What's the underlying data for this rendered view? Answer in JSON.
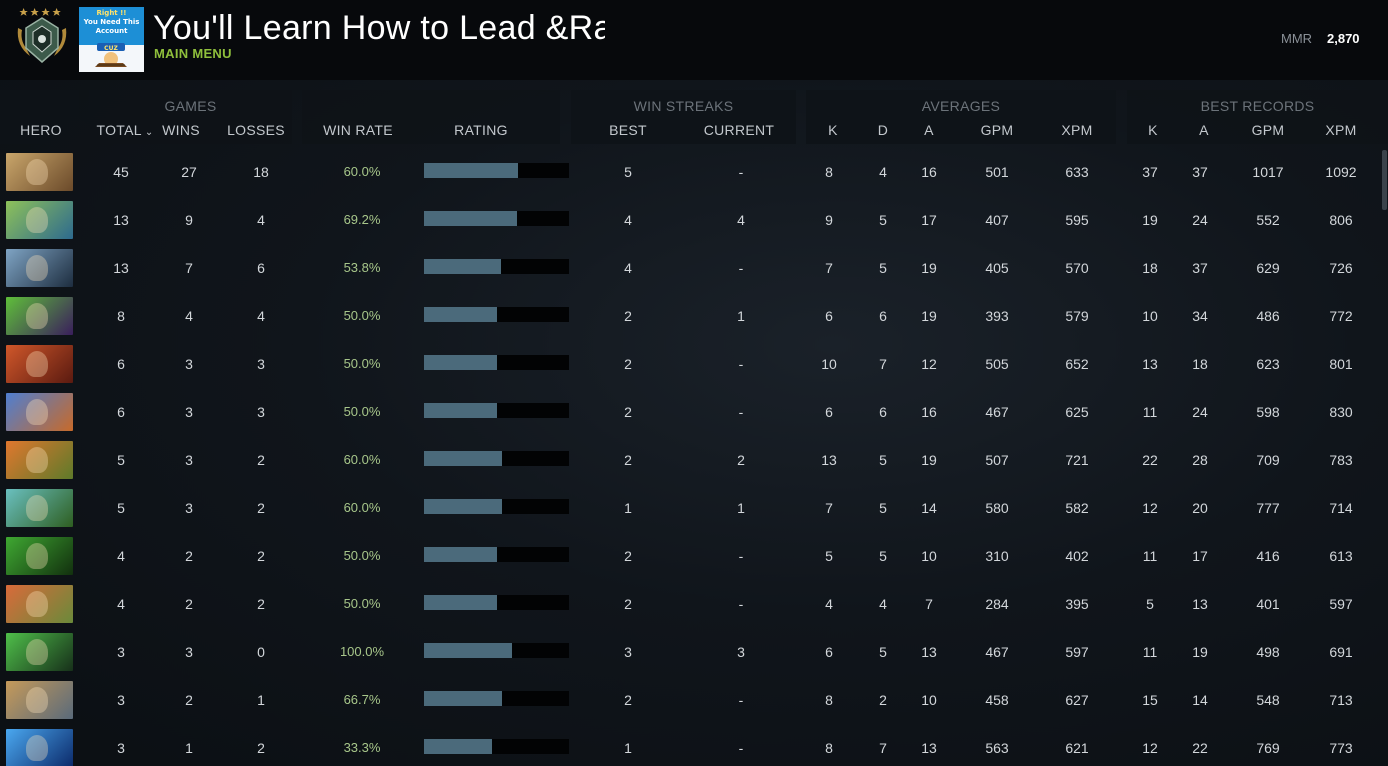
{
  "header": {
    "profile_name": "You'll Learn How to Lead &Ra",
    "main_menu": "MAIN MENU",
    "mmr_label": "MMR",
    "mmr_value": "2,870",
    "avatar_text_1": "Right !!",
    "avatar_text_2": "You Need This",
    "avatar_text_3": "Account",
    "avatar_text_4": "CUZ"
  },
  "groups": {
    "games": "GAMES",
    "win_streaks": "WIN STREAKS",
    "averages": "AVERAGES",
    "best_records": "BEST RECORDS"
  },
  "columns": {
    "hero": "HERO",
    "total": "TOTAL",
    "wins": "WINS",
    "losses": "LOSSES",
    "win_rate": "WIN RATE",
    "rating": "RATING",
    "best": "BEST",
    "current": "CURRENT",
    "avg_k": "K",
    "avg_d": "D",
    "avg_a": "A",
    "avg_gpm": "GPM",
    "avg_xpm": "XPM",
    "best_k": "K",
    "best_a": "A",
    "best_gpm": "GPM",
    "best_xpm": "XPM"
  },
  "rows": [
    {
      "total": "45",
      "wins": "27",
      "losses": "18",
      "win_rate": "60.0%",
      "rating": 0.65,
      "best": "5",
      "current": "-",
      "k": "8",
      "d": "4",
      "a": "16",
      "gpm": "501",
      "xpm": "633",
      "bk": "37",
      "ba": "37",
      "bgpm": "1017",
      "bxpm": "1092",
      "hero_colors": [
        "#c9a66b",
        "#6b4a2a"
      ]
    },
    {
      "total": "13",
      "wins": "9",
      "losses": "4",
      "win_rate": "69.2%",
      "rating": 0.64,
      "best": "4",
      "current": "4",
      "k": "9",
      "d": "5",
      "a": "17",
      "gpm": "407",
      "xpm": "595",
      "bk": "19",
      "ba": "24",
      "bgpm": "552",
      "bxpm": "806",
      "hero_colors": [
        "#8ec15a",
        "#2d6a8e"
      ]
    },
    {
      "total": "13",
      "wins": "7",
      "losses": "6",
      "win_rate": "53.8%",
      "rating": 0.53,
      "best": "4",
      "current": "-",
      "k": "7",
      "d": "5",
      "a": "19",
      "gpm": "405",
      "xpm": "570",
      "bk": "18",
      "ba": "37",
      "bgpm": "629",
      "bxpm": "726",
      "hero_colors": [
        "#7fa4c4",
        "#1d2d3f"
      ]
    },
    {
      "total": "8",
      "wins": "4",
      "losses": "4",
      "win_rate": "50.0%",
      "rating": 0.5,
      "best": "2",
      "current": "1",
      "k": "6",
      "d": "6",
      "a": "19",
      "gpm": "393",
      "xpm": "579",
      "bk": "10",
      "ba": "34",
      "bgpm": "486",
      "bxpm": "772",
      "hero_colors": [
        "#5fbf3a",
        "#3a1e5c"
      ]
    },
    {
      "total": "6",
      "wins": "3",
      "losses": "3",
      "win_rate": "50.0%",
      "rating": 0.5,
      "best": "2",
      "current": "-",
      "k": "10",
      "d": "7",
      "a": "12",
      "gpm": "505",
      "xpm": "652",
      "bk": "13",
      "ba": "18",
      "bgpm": "623",
      "bxpm": "801",
      "hero_colors": [
        "#d0572a",
        "#5a1a10"
      ]
    },
    {
      "total": "6",
      "wins": "3",
      "losses": "3",
      "win_rate": "50.0%",
      "rating": 0.5,
      "best": "2",
      "current": "-",
      "k": "6",
      "d": "6",
      "a": "16",
      "gpm": "467",
      "xpm": "625",
      "bk": "11",
      "ba": "24",
      "bgpm": "598",
      "bxpm": "830",
      "hero_colors": [
        "#4f7fd1",
        "#c76a2a"
      ]
    },
    {
      "total": "5",
      "wins": "3",
      "losses": "2",
      "win_rate": "60.0%",
      "rating": 0.54,
      "best": "2",
      "current": "2",
      "k": "13",
      "d": "5",
      "a": "19",
      "gpm": "507",
      "xpm": "721",
      "bk": "22",
      "ba": "28",
      "bgpm": "709",
      "bxpm": "783",
      "hero_colors": [
        "#e0772e",
        "#5e7a2a"
      ]
    },
    {
      "total": "5",
      "wins": "3",
      "losses": "2",
      "win_rate": "60.0%",
      "rating": 0.54,
      "best": "1",
      "current": "1",
      "k": "7",
      "d": "5",
      "a": "14",
      "gpm": "580",
      "xpm": "582",
      "bk": "12",
      "ba": "20",
      "bgpm": "777",
      "bxpm": "714",
      "hero_colors": [
        "#6ac0c0",
        "#2e5e20"
      ]
    },
    {
      "total": "4",
      "wins": "2",
      "losses": "2",
      "win_rate": "50.0%",
      "rating": 0.5,
      "best": "2",
      "current": "-",
      "k": "5",
      "d": "5",
      "a": "10",
      "gpm": "310",
      "xpm": "402",
      "bk": "11",
      "ba": "17",
      "bgpm": "416",
      "bxpm": "613",
      "hero_colors": [
        "#3fa832",
        "#12300e"
      ]
    },
    {
      "total": "4",
      "wins": "2",
      "losses": "2",
      "win_rate": "50.0%",
      "rating": 0.5,
      "best": "2",
      "current": "-",
      "k": "4",
      "d": "4",
      "a": "7",
      "gpm": "284",
      "xpm": "395",
      "bk": "5",
      "ba": "13",
      "bgpm": "401",
      "bxpm": "597",
      "hero_colors": [
        "#d96a3a",
        "#6a8a3a"
      ]
    },
    {
      "total": "3",
      "wins": "3",
      "losses": "0",
      "win_rate": "100.0%",
      "rating": 0.61,
      "best": "3",
      "current": "3",
      "k": "6",
      "d": "5",
      "a": "13",
      "gpm": "467",
      "xpm": "597",
      "bk": "11",
      "ba": "19",
      "bgpm": "498",
      "bxpm": "691",
      "hero_colors": [
        "#4fbf4a",
        "#17301a"
      ]
    },
    {
      "total": "3",
      "wins": "2",
      "losses": "1",
      "win_rate": "66.7%",
      "rating": 0.54,
      "best": "2",
      "current": "-",
      "k": "8",
      "d": "2",
      "a": "10",
      "gpm": "458",
      "xpm": "627",
      "bk": "15",
      "ba": "14",
      "bgpm": "548",
      "bxpm": "713",
      "hero_colors": [
        "#c59a5a",
        "#5a6a7a"
      ]
    },
    {
      "total": "3",
      "wins": "1",
      "losses": "2",
      "win_rate": "33.3%",
      "rating": 0.47,
      "best": "1",
      "current": "-",
      "k": "8",
      "d": "7",
      "a": "13",
      "gpm": "563",
      "xpm": "621",
      "bk": "12",
      "ba": "22",
      "bgpm": "769",
      "bxpm": "773",
      "hero_colors": [
        "#4aa8f0",
        "#0c2a6a"
      ]
    }
  ]
}
